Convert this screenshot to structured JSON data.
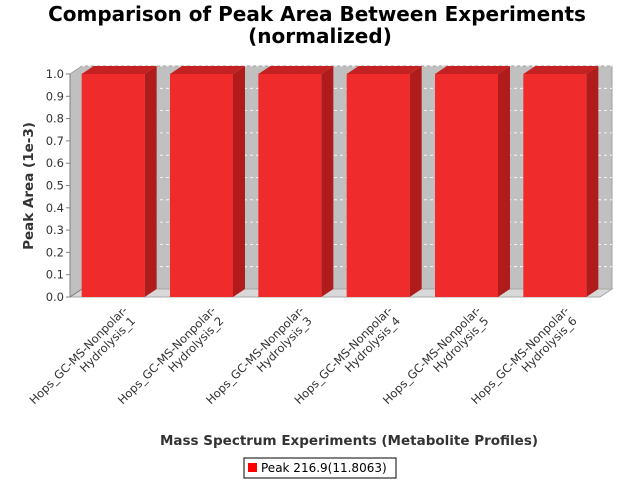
{
  "chart_data": {
    "type": "bar",
    "title": "Comparison of Peak Area Between Experiments (normalized)",
    "title_lines": [
      "Comparison of Peak Area Between Experiments",
      "(normalized)"
    ],
    "xlabel": "Mass Spectrum Experiments (Metabolite Profiles)",
    "ylabel": "Peak Area (1e-3)",
    "categories": [
      "Hops_GC-MS-Nonpolar-Hydrolysis_1",
      "Hops_GC-MS-Nonpolar-Hydrolysis_2",
      "Hops_GC-MS-Nonpolar-Hydrolysis_3",
      "Hops_GC-MS-Nonpolar-Hydrolysis_4",
      "Hops_GC-MS-Nonpolar-Hydrolysis_5",
      "Hops_GC-MS-Nonpolar-Hydrolysis_6"
    ],
    "category_label_lines": [
      [
        "Hops_GC-MS-Nonpolar-",
        "Hydrolysis_1"
      ],
      [
        "Hops_GC-MS-Nonpolar-",
        "Hydrolysis_2"
      ],
      [
        "Hops_GC-MS-Nonpolar-",
        "Hydrolysis_3"
      ],
      [
        "Hops_GC-MS-Nonpolar-",
        "Hydrolysis_4"
      ],
      [
        "Hops_GC-MS-Nonpolar-",
        "Hydrolysis_5"
      ],
      [
        "Hops_GC-MS-Nonpolar-",
        "Hydrolysis_6"
      ]
    ],
    "series": [
      {
        "name": "Peak 216.9(11.8063)",
        "values": [
          1.0,
          1.0,
          1.0,
          1.0,
          1.0,
          1.0
        ],
        "color": "#ff0000"
      }
    ],
    "ylim": [
      0.0,
      1.0
    ],
    "yticks": [
      "0.0",
      "0.1",
      "0.2",
      "0.3",
      "0.4",
      "0.5",
      "0.6",
      "0.7",
      "0.8",
      "0.9",
      "1.0"
    ],
    "grid": true,
    "legend_position": "bottom",
    "style": "3d",
    "colors": {
      "plot_background": "#c0c0c0",
      "floor": "#d8d8d8",
      "bar_front": "#ef2b2b",
      "bar_side": "#b01c1c",
      "bar_top": "#c42222",
      "gridline": "#ffffff"
    }
  }
}
